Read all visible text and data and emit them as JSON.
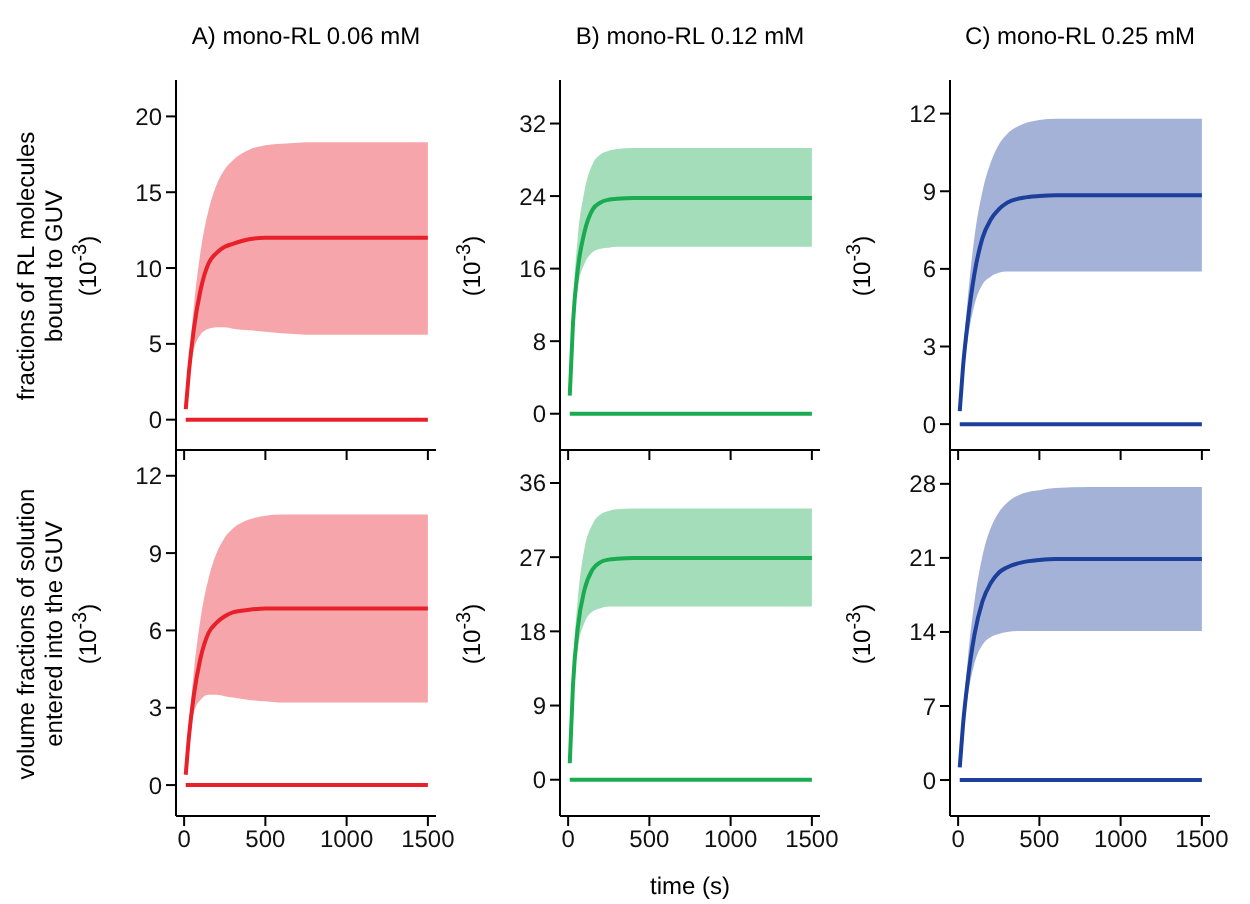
{
  "chart_data": [
    {
      "type": "line",
      "title": "A) mono-RL 0.06 mM",
      "ylabel": "fractions of RL molecules\nbound to GUV\n(10$^{-3}$)",
      "xlim": [
        -50,
        1550
      ],
      "xticks": [
        0,
        500,
        1000,
        1500
      ],
      "ylim": [
        -2,
        22.4
      ],
      "yticks": [
        0,
        5,
        10,
        15,
        20
      ],
      "tick_labels": "y",
      "x": [
        10,
        30,
        60,
        100,
        150,
        200,
        250,
        300,
        400,
        500,
        600,
        800,
        1000,
        1200,
        1500
      ],
      "series": [
        {
          "color": "#e8202a",
          "values": [
            0.7,
            3.2,
            6.0,
            8.5,
            10.3,
            11.0,
            11.4,
            11.6,
            11.9,
            12,
            12,
            12,
            12,
            12,
            12
          ],
          "lower": [
            0.6,
            2.8,
            4.6,
            5.6,
            6.0,
            6.1,
            6.1,
            6.0,
            5.9,
            5.8,
            5.7,
            5.6,
            5.6,
            5.6,
            5.6
          ],
          "upper": [
            0.8,
            3.8,
            7.5,
            11,
            13.8,
            15.5,
            16.5,
            17.1,
            17.8,
            18.1,
            18.2,
            18.3,
            18.3,
            18.3,
            18.3
          ]
        },
        {
          "color": "#e8202a",
          "values": [
            0,
            0,
            0,
            0,
            0,
            0,
            0,
            0,
            0,
            0,
            0,
            0,
            0,
            0,
            0
          ]
        }
      ]
    },
    {
      "type": "line",
      "title": "B) mono-RL 0.12 mM",
      "ylabel": "(10$^{-3}$)",
      "xlim": [
        -50,
        1550
      ],
      "xticks": [
        0,
        500,
        1000,
        1500
      ],
      "ylim": [
        -4,
        36.8
      ],
      "yticks": [
        0,
        8,
        16,
        24,
        32
      ],
      "tick_labels": "y",
      "x": [
        10,
        30,
        60,
        100,
        150,
        200,
        250,
        300,
        400,
        500,
        600,
        800,
        1000,
        1200,
        1500
      ],
      "series": [
        {
          "color": "#1aab50",
          "values": [
            2,
            10,
            16,
            20,
            22.5,
            23.3,
            23.6,
            23.7,
            23.8,
            23.8,
            23.8,
            23.8,
            23.8,
            23.8,
            23.8
          ],
          "lower": [
            1.8,
            9,
            14,
            16.5,
            17.8,
            18.2,
            18.3,
            18.4,
            18.4,
            18.4,
            18.4,
            18.4,
            18.4,
            18.4,
            18.4
          ],
          "upper": [
            2.2,
            12,
            19.5,
            24.5,
            27.5,
            28.6,
            29,
            29.2,
            29.3,
            29.3,
            29.3,
            29.3,
            29.3,
            29.3,
            29.3
          ]
        },
        {
          "color": "#1aab50",
          "values": [
            0,
            0,
            0,
            0,
            0,
            0,
            0,
            0,
            0,
            0,
            0,
            0,
            0,
            0,
            0
          ]
        }
      ]
    },
    {
      "type": "line",
      "title": "C) mono-RL 0.25 mM",
      "ylabel": "(10$^{-3}$)",
      "xlim": [
        -50,
        1550
      ],
      "xticks": [
        0,
        500,
        1000,
        1500
      ],
      "ylim": [
        -1,
        13.3
      ],
      "yticks": [
        0,
        3,
        6,
        9,
        12
      ],
      "tick_labels": "y",
      "x": [
        10,
        30,
        60,
        100,
        150,
        200,
        250,
        300,
        400,
        500,
        600,
        800,
        1000,
        1200,
        1500
      ],
      "series": [
        {
          "color": "#1b3f9a",
          "values": [
            0.5,
            2.2,
            4.0,
            5.8,
            7.2,
            7.9,
            8.3,
            8.55,
            8.75,
            8.82,
            8.85,
            8.85,
            8.85,
            8.85,
            8.85
          ],
          "lower": [
            0.45,
            1.9,
            3.3,
            4.6,
            5.4,
            5.7,
            5.85,
            5.9,
            5.9,
            5.9,
            5.9,
            5.9,
            5.9,
            5.9,
            5.9
          ],
          "upper": [
            0.55,
            2.6,
            4.9,
            7.2,
            9.0,
            10.1,
            10.8,
            11.2,
            11.6,
            11.75,
            11.8,
            11.8,
            11.8,
            11.8,
            11.8
          ]
        },
        {
          "color": "#1b3f9a",
          "values": [
            0,
            0,
            0,
            0,
            0,
            0,
            0,
            0,
            0,
            0,
            0,
            0,
            0,
            0,
            0
          ]
        }
      ]
    },
    {
      "type": "line",
      "ylabel": "volume fractions of solution\nentered into the GUV\n(10$^{-3}$)",
      "xlim": [
        -50,
        1550
      ],
      "xticks": [
        0,
        500,
        1000,
        1500
      ],
      "ylim": [
        -1.2,
        13
      ],
      "yticks": [
        0,
        3,
        6,
        9,
        12
      ],
      "x": [
        10,
        30,
        60,
        100,
        150,
        200,
        250,
        300,
        400,
        500,
        600,
        800,
        1000,
        1200,
        1500
      ],
      "series": [
        {
          "color": "#e8202a",
          "values": [
            0.4,
            1.9,
            3.5,
            4.9,
            5.9,
            6.3,
            6.55,
            6.7,
            6.8,
            6.85,
            6.85,
            6.85,
            6.85,
            6.85,
            6.85
          ],
          "lower": [
            0.35,
            1.7,
            2.8,
            3.3,
            3.5,
            3.5,
            3.45,
            3.4,
            3.3,
            3.25,
            3.2,
            3.2,
            3.2,
            3.2,
            3.2
          ],
          "upper": [
            0.45,
            2.3,
            4.4,
            6.4,
            8.0,
            9.0,
            9.6,
            9.95,
            10.3,
            10.45,
            10.5,
            10.5,
            10.5,
            10.5,
            10.5
          ]
        },
        {
          "color": "#e8202a",
          "values": [
            0,
            0,
            0,
            0,
            0,
            0,
            0,
            0,
            0,
            0,
            0,
            0,
            0,
            0,
            0
          ]
        }
      ]
    },
    {
      "type": "line",
      "ylabel": "(10$^{-3}$)",
      "xlabel": "time (s)",
      "xlim": [
        -50,
        1550
      ],
      "xticks": [
        0,
        500,
        1000,
        1500
      ],
      "ylim": [
        -4.4,
        40
      ],
      "yticks": [
        0,
        9,
        18,
        27,
        36
      ],
      "x": [
        10,
        30,
        60,
        100,
        150,
        200,
        250,
        300,
        400,
        500,
        600,
        800,
        1000,
        1200,
        1500
      ],
      "series": [
        {
          "color": "#1aab50",
          "values": [
            2,
            11.5,
            18.5,
            23,
            25.5,
            26.4,
            26.7,
            26.8,
            26.9,
            26.9,
            26.9,
            26.9,
            26.9,
            26.9,
            26.9
          ],
          "lower": [
            1.8,
            10,
            16,
            19,
            20.4,
            20.8,
            21,
            21,
            21,
            21,
            21,
            21,
            21,
            21,
            21
          ],
          "upper": [
            2.2,
            13.5,
            22,
            28,
            31,
            32.2,
            32.6,
            32.8,
            32.9,
            32.9,
            32.9,
            32.9,
            32.9,
            32.9,
            32.9
          ]
        },
        {
          "color": "#1aab50",
          "values": [
            0,
            0,
            0,
            0,
            0,
            0,
            0,
            0,
            0,
            0,
            0,
            0,
            0,
            0,
            0
          ]
        }
      ]
    },
    {
      "type": "line",
      "ylabel": "(10$^{-3}$)",
      "xlim": [
        -50,
        1550
      ],
      "xticks": [
        0,
        500,
        1000,
        1500
      ],
      "ylim": [
        -3.4,
        31.2
      ],
      "yticks": [
        0,
        7,
        14,
        21,
        28
      ],
      "x": [
        10,
        30,
        60,
        100,
        150,
        200,
        250,
        300,
        400,
        500,
        600,
        800,
        1000,
        1200,
        1500
      ],
      "series": [
        {
          "color": "#1b3f9a",
          "values": [
            1.2,
            5.2,
            9.5,
            13.7,
            16.9,
            18.6,
            19.6,
            20.1,
            20.6,
            20.8,
            20.9,
            20.9,
            20.9,
            20.9,
            20.9
          ],
          "lower": [
            1.1,
            4.6,
            8,
            11,
            12.8,
            13.5,
            13.8,
            14,
            14.1,
            14.1,
            14.1,
            14.1,
            14.1,
            14.1,
            14.1
          ],
          "upper": [
            1.3,
            6,
            11.5,
            16.8,
            21.2,
            23.8,
            25.3,
            26.2,
            27.1,
            27.4,
            27.6,
            27.7,
            27.7,
            27.7,
            27.7
          ]
        },
        {
          "color": "#1b3f9a",
          "values": [
            0,
            0,
            0,
            0,
            0,
            0,
            0,
            0,
            0,
            0,
            0,
            0,
            0,
            0,
            0
          ]
        }
      ]
    }
  ]
}
